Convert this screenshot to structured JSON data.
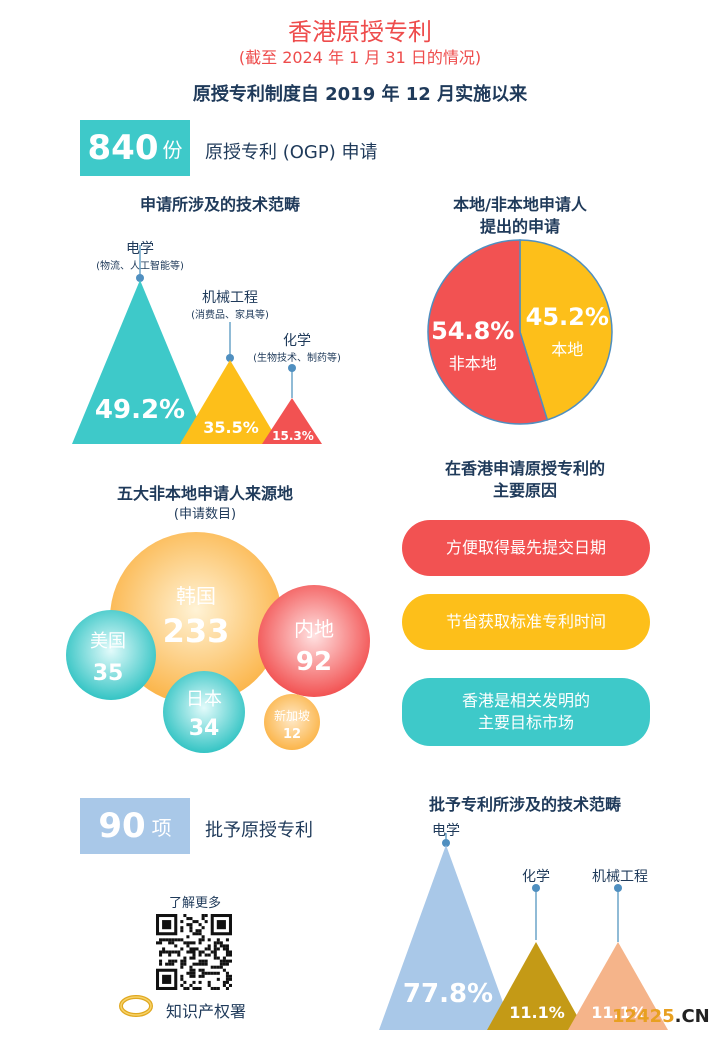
{
  "header": {
    "title": "香港原授专利",
    "subtitle": "(截至 2024 年 1 月 31 日的情况)",
    "headline": "原授专利制度自 2019 年 12 月实施以来"
  },
  "applications": {
    "count": "840",
    "unit": "份",
    "label": "原授专利 (OGP) 申请"
  },
  "tech_fields": {
    "title": "申请所涉及的技术范畴",
    "items": [
      {
        "name": "电学",
        "note": "(物流、人工智能等)",
        "percent": "49.2%",
        "value": 49.2,
        "color": "#3ec9c9"
      },
      {
        "name": "机械工程",
        "note": "(消费品、家具等)",
        "percent": "35.5%",
        "value": 35.5,
        "color": "#fdbf1a"
      },
      {
        "name": "化学",
        "note": "(生物技术、制药等)",
        "percent": "15.3%",
        "value": 15.3,
        "color": "#f25252"
      }
    ]
  },
  "applicants": {
    "title_line1": "本地/非本地申请人",
    "title_line2": "提出的申请",
    "chart_data": {
      "type": "pie",
      "slices": [
        {
          "label": "非本地",
          "percent": "54.8%",
          "value": 54.8,
          "color": "#f25252"
        },
        {
          "label": "本地",
          "percent": "45.2%",
          "value": 45.2,
          "color": "#fdbf1a"
        }
      ]
    }
  },
  "sources": {
    "title": "五大非本地申请人来源地",
    "subtitle": "(申请数目)",
    "items": [
      {
        "name": "韩国",
        "count": "233"
      },
      {
        "name": "内地",
        "count": "92"
      },
      {
        "name": "美国",
        "count": "35"
      },
      {
        "name": "日本",
        "count": "34"
      },
      {
        "name": "新加坡",
        "count": "12"
      }
    ]
  },
  "reasons": {
    "title_line1": "在香港申请原授专利的",
    "title_line2": "主要原因",
    "items": [
      {
        "line1": "方便取得最先提交日期",
        "line2": "",
        "color": "#f25252"
      },
      {
        "line1": "节省获取标准专利时间",
        "line2": "",
        "color": "#fdbf1a"
      },
      {
        "line1": "香港是相关发明的",
        "line2": "主要目标市场",
        "color": "#3ec9c9"
      }
    ]
  },
  "granted": {
    "count": "90",
    "unit": "项",
    "label": "批予原授专利"
  },
  "granted_fields": {
    "title": "批予专利所涉及的技术范畴",
    "items": [
      {
        "name": "电学",
        "percent": "77.8%",
        "value": 77.8,
        "color": "#a9c8e8"
      },
      {
        "name": "化学",
        "percent": "11.1%",
        "value": 11.1,
        "color": "#c49a16"
      },
      {
        "name": "机械工程",
        "percent": "11.1%",
        "value": 11.1,
        "color": "#f5b48a"
      }
    ]
  },
  "footer": {
    "learn_more": "了解更多",
    "org": "知识产权署",
    "watermark_a": "12425",
    "watermark_b": ".CN"
  }
}
